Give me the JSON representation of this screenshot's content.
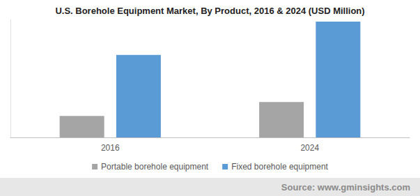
{
  "chart_data": {
    "type": "bar",
    "title": "U.S. Borehole Equipment Market, By Product, 2016 & 2024 (USD Million)",
    "categories": [
      "2016",
      "2024"
    ],
    "series": [
      {
        "name": "Portable borehole equipment",
        "color": "#a5a5a5",
        "values": [
          31,
          51
        ]
      },
      {
        "name": "Fixed borehole equipment",
        "color": "#5b9bd5",
        "values": [
          119,
          167
        ]
      }
    ],
    "ylim": [
      0,
      170
    ],
    "grid": false,
    "tick_labels": "x",
    "legend": "bottom",
    "source": "Source: www.gminsights.com"
  }
}
